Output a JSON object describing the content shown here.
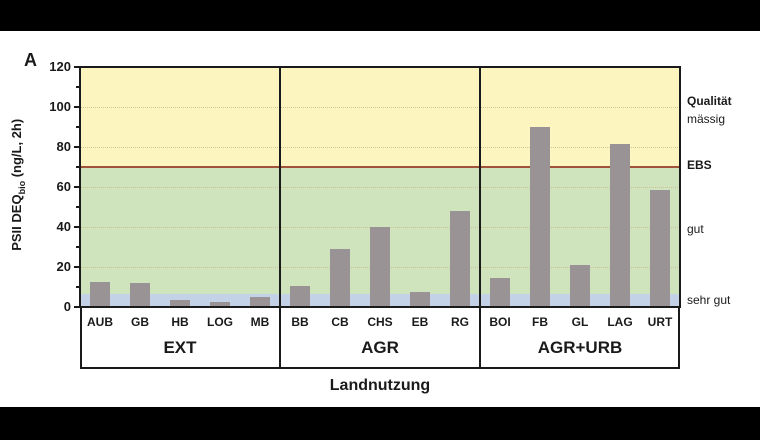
{
  "figure": {
    "panel_letter": "A",
    "y_axis_title": "PSII DEQ",
    "y_axis_title_sub": "bio",
    "y_axis_title_suffix": " (ng/L, 2h)",
    "x_axis_title": "Landnutzung",
    "y_ticks": [
      "0",
      "20",
      "40",
      "60",
      "80",
      "100",
      "120"
    ],
    "quality_header": "Qualität",
    "quality_labels": {
      "maessig": "mässig",
      "ebs": "EBS",
      "gut": "gut",
      "sehr_gut": "sehr gut"
    },
    "groups": [
      {
        "label": "EXT",
        "categories": [
          "AUB",
          "GB",
          "HB",
          "LOG",
          "MB"
        ]
      },
      {
        "label": "AGR",
        "categories": [
          "BB",
          "CB",
          "CHS",
          "EB",
          "RG"
        ]
      },
      {
        "label": "AGR+URB",
        "categories": [
          "BOI",
          "FB",
          "GL",
          "LAG",
          "URT"
        ]
      }
    ],
    "colors": {
      "zone_maessig": "#fdf5bf",
      "zone_gut": "#cfe3bd",
      "zone_sehr_gut": "#c3d2e6",
      "ebs_line": "#a0523a",
      "bar": "#9a9396"
    }
  },
  "chart_data": {
    "type": "bar",
    "title": "",
    "xlabel": "Landnutzung",
    "ylabel": "PSII DEQbio (ng/L, 2h)",
    "ylim": [
      0,
      120
    ],
    "yticks": [
      0,
      20,
      40,
      60,
      80,
      100,
      120
    ],
    "grid": true,
    "groups": [
      "EXT",
      "AGR",
      "AGR+URB"
    ],
    "categories": [
      "AUB",
      "GB",
      "HB",
      "LOG",
      "MB",
      "BB",
      "CB",
      "CHS",
      "EB",
      "RG",
      "BOI",
      "FB",
      "GL",
      "LAG",
      "URT"
    ],
    "category_group": [
      "EXT",
      "EXT",
      "EXT",
      "EXT",
      "EXT",
      "AGR",
      "AGR",
      "AGR",
      "AGR",
      "AGR",
      "AGR+URB",
      "AGR+URB",
      "AGR+URB",
      "AGR+URB",
      "AGR+URB"
    ],
    "values": [
      12.5,
      12,
      3.5,
      2.5,
      5,
      10.5,
      29,
      40,
      7.5,
      48,
      14.5,
      90,
      21,
      81.5,
      58.5
    ],
    "reference_lines": [
      {
        "label": "EBS",
        "y": 70
      }
    ],
    "background_zones": [
      {
        "label": "sehr gut",
        "from": 0,
        "to": 6.5
      },
      {
        "label": "gut",
        "from": 6.5,
        "to": 70
      },
      {
        "label": "mässig",
        "from": 70,
        "to": 120
      }
    ],
    "annotations": [
      "A",
      "Qualität",
      "mässig",
      "EBS",
      "gut",
      "sehr gut"
    ]
  }
}
